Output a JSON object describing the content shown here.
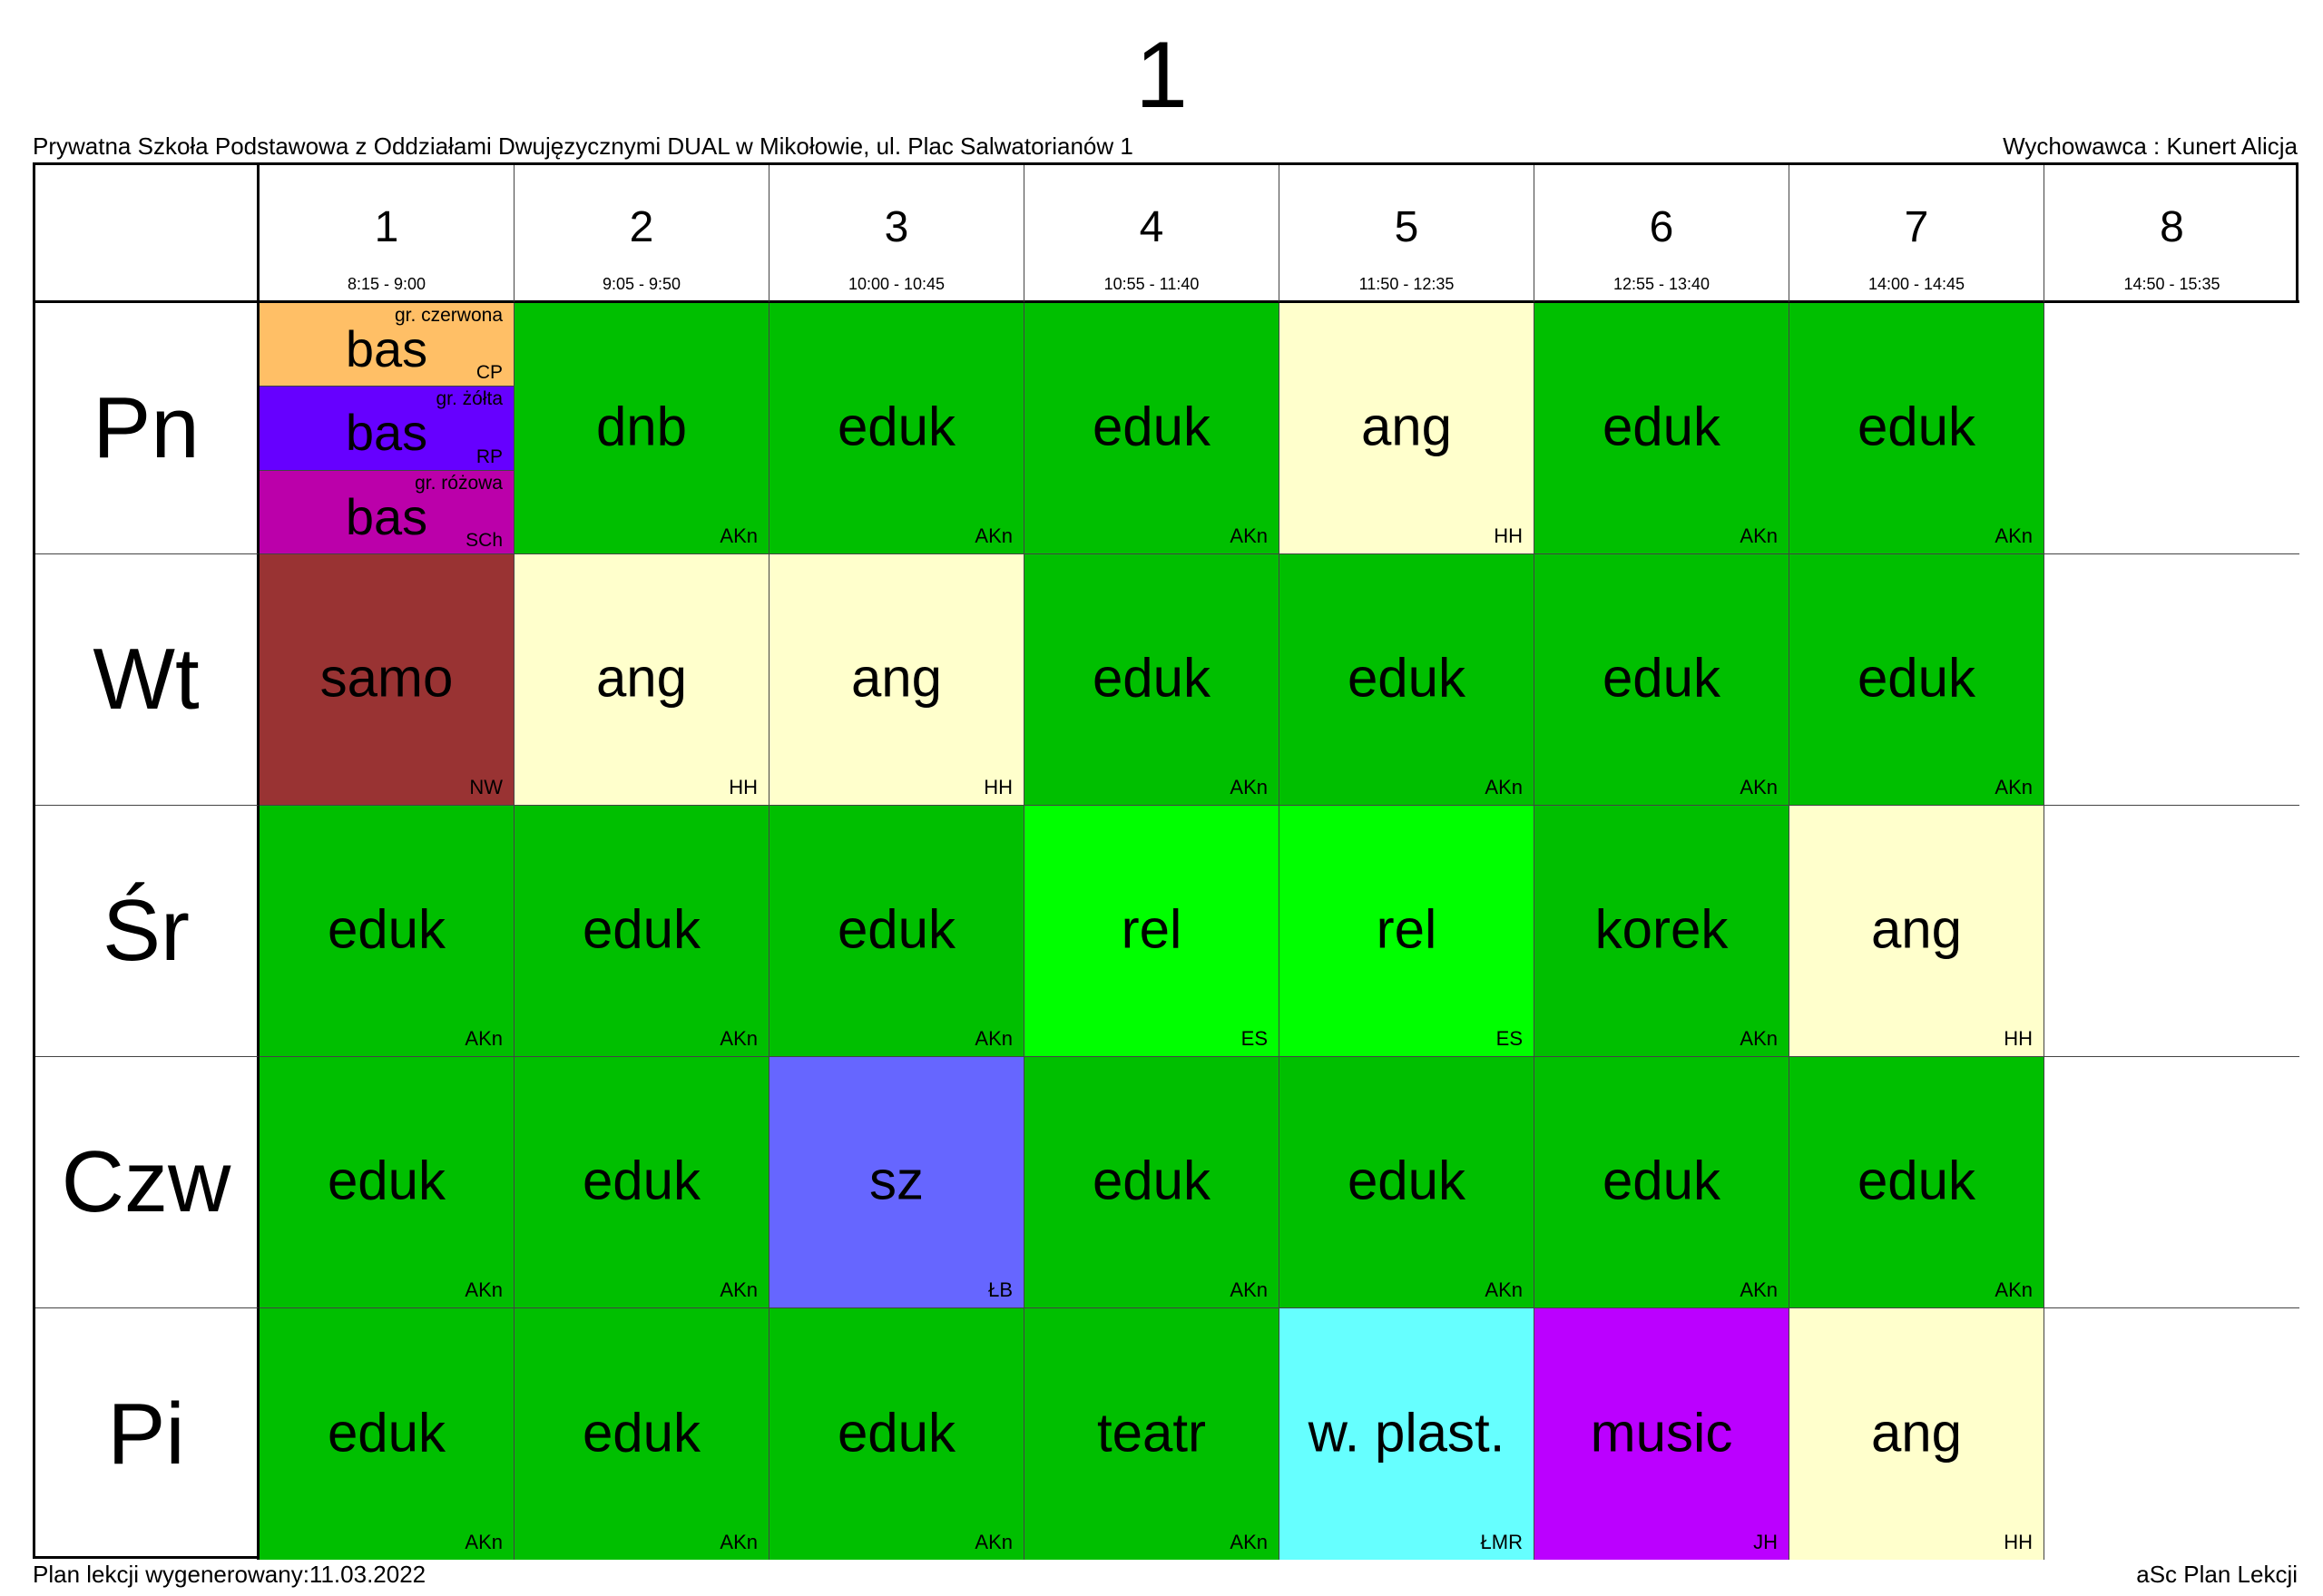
{
  "title": "1",
  "school": "Prywatna Szkoła Podstawowa z Oddziałami Dwujęzycznymi DUAL w Mikołowie, ul. Plac Salwatorianów 1",
  "form_teacher": "Wychowawca : Kunert Alicja",
  "footer_left": "Plan lekcji wygenerowany:11.03.2022",
  "footer_right": "aSc Plan Lekcji",
  "colors": {
    "eduk": "#00bf00",
    "ang": "#ffffcc",
    "samo": "#993333",
    "rel": "#00ff00",
    "sz": "#6666ff",
    "teatr": "#00bf00",
    "w_plast": "#66ffff",
    "music": "#bb00ff",
    "dnb": "#00bf00",
    "korek": "#00bf00",
    "bas_red": "#ffbf66",
    "bas_yellow": "#6600ff",
    "bas_pink": "#bb00aa"
  },
  "periods": [
    {
      "num": "1",
      "time": "8:15 - 9:00"
    },
    {
      "num": "2",
      "time": "9:05 - 9:50"
    },
    {
      "num": "3",
      "time": "10:00 - 10:45"
    },
    {
      "num": "4",
      "time": "10:55 - 11:40"
    },
    {
      "num": "5",
      "time": "11:50 - 12:35"
    },
    {
      "num": "6",
      "time": "12:55 - 13:40"
    },
    {
      "num": "7",
      "time": "14:00 - 14:45"
    },
    {
      "num": "8",
      "time": "14:50 - 15:35"
    }
  ],
  "days": [
    {
      "name": "Pn",
      "lessons": [
        {
          "split": [
            {
              "subject": "bas",
              "group": "gr. czerwona",
              "teacher": "CP",
              "color": "#ffbf66"
            },
            {
              "subject": "bas",
              "group": "gr. żółta",
              "teacher": "RP",
              "color": "#6600ff"
            },
            {
              "subject": "bas",
              "group": "gr. różowa",
              "teacher": "SCh",
              "color": "#bb00aa"
            }
          ]
        },
        {
          "subject": "dnb",
          "teacher": "AKn",
          "color": "#00bf00"
        },
        {
          "subject": "eduk",
          "teacher": "AKn",
          "color": "#00bf00"
        },
        {
          "subject": "eduk",
          "teacher": "AKn",
          "color": "#00bf00"
        },
        {
          "subject": "ang",
          "teacher": "HH",
          "color": "#ffffcc"
        },
        {
          "subject": "eduk",
          "teacher": "AKn",
          "color": "#00bf00"
        },
        {
          "subject": "eduk",
          "teacher": "AKn",
          "color": "#00bf00"
        },
        {
          "subject": "",
          "teacher": "",
          "color": "#ffffff"
        }
      ]
    },
    {
      "name": "Wt",
      "lessons": [
        {
          "subject": "samo",
          "teacher": "NW",
          "color": "#993333"
        },
        {
          "subject": "ang",
          "teacher": "HH",
          "color": "#ffffcc"
        },
        {
          "subject": "ang",
          "teacher": "HH",
          "color": "#ffffcc"
        },
        {
          "subject": "eduk",
          "teacher": "AKn",
          "color": "#00bf00"
        },
        {
          "subject": "eduk",
          "teacher": "AKn",
          "color": "#00bf00"
        },
        {
          "subject": "eduk",
          "teacher": "AKn",
          "color": "#00bf00"
        },
        {
          "subject": "eduk",
          "teacher": "AKn",
          "color": "#00bf00"
        },
        {
          "subject": "",
          "teacher": "",
          "color": "#ffffff"
        }
      ]
    },
    {
      "name": "Śr",
      "lessons": [
        {
          "subject": "eduk",
          "teacher": "AKn",
          "color": "#00bf00"
        },
        {
          "subject": "eduk",
          "teacher": "AKn",
          "color": "#00bf00"
        },
        {
          "subject": "eduk",
          "teacher": "AKn",
          "color": "#00bf00"
        },
        {
          "subject": "rel",
          "teacher": "ES",
          "color": "#00ff00"
        },
        {
          "subject": "rel",
          "teacher": "ES",
          "color": "#00ff00"
        },
        {
          "subject": "korek",
          "teacher": "AKn",
          "color": "#00bf00"
        },
        {
          "subject": "ang",
          "teacher": "HH",
          "color": "#ffffcc"
        },
        {
          "subject": "",
          "teacher": "",
          "color": "#ffffff"
        }
      ]
    },
    {
      "name": "Czw",
      "lessons": [
        {
          "subject": "eduk",
          "teacher": "AKn",
          "color": "#00bf00"
        },
        {
          "subject": "eduk",
          "teacher": "AKn",
          "color": "#00bf00"
        },
        {
          "subject": "sz",
          "teacher": "ŁB",
          "color": "#6666ff"
        },
        {
          "subject": "eduk",
          "teacher": "AKn",
          "color": "#00bf00"
        },
        {
          "subject": "eduk",
          "teacher": "AKn",
          "color": "#00bf00"
        },
        {
          "subject": "eduk",
          "teacher": "AKn",
          "color": "#00bf00"
        },
        {
          "subject": "eduk",
          "teacher": "AKn",
          "color": "#00bf00"
        },
        {
          "subject": "",
          "teacher": "",
          "color": "#ffffff"
        }
      ]
    },
    {
      "name": "Pi",
      "lessons": [
        {
          "subject": "eduk",
          "teacher": "AKn",
          "color": "#00bf00"
        },
        {
          "subject": "eduk",
          "teacher": "AKn",
          "color": "#00bf00"
        },
        {
          "subject": "eduk",
          "teacher": "AKn",
          "color": "#00bf00"
        },
        {
          "subject": "teatr",
          "teacher": "AKn",
          "color": "#00bf00"
        },
        {
          "subject": "w. plast.",
          "teacher": "ŁMR",
          "color": "#66ffff"
        },
        {
          "subject": "music",
          "teacher": "JH",
          "color": "#bb00ff"
        },
        {
          "subject": "ang",
          "teacher": "HH",
          "color": "#ffffcc"
        },
        {
          "subject": "",
          "teacher": "",
          "color": "#ffffff"
        }
      ]
    }
  ]
}
